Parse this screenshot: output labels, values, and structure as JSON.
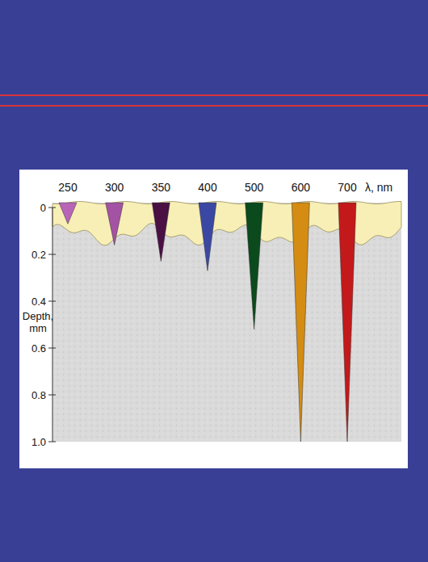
{
  "chart_data": {
    "type": "bar",
    "categories": [
      "250",
      "300",
      "350",
      "400",
      "500",
      "600",
      "700"
    ],
    "values": [
      0.07,
      0.16,
      0.23,
      0.27,
      0.52,
      1.0,
      1.0
    ],
    "colors": [
      "#b865b8",
      "#a452a4",
      "#4a1044",
      "#3b48a3",
      "#0b4a1c",
      "#d48c12",
      "#c3191b"
    ],
    "x_label": "λ, nm",
    "y_label": "Depth, mm",
    "ylim": [
      0,
      1
    ],
    "yticks": [
      0,
      0.2,
      0.4,
      0.6,
      0.8,
      {
        "value": 1,
        "label": "1.0"
      }
    ]
  }
}
